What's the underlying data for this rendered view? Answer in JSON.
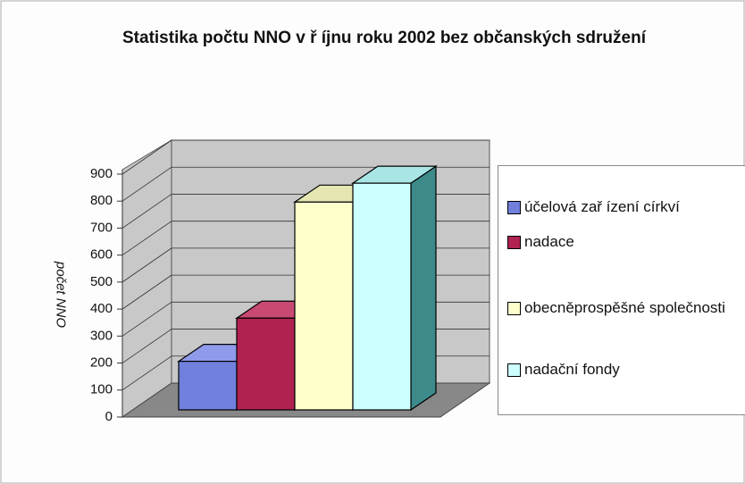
{
  "chart_data": {
    "type": "bar3d",
    "title": "Statistika počtu NNO v ř íjnu roku 2002 bez občanských sdružení",
    "y_label": "počet NNO",
    "categories": [
      "účelová zař ízení církví",
      "nadace",
      "obecněprospěšné společnosti",
      "nadační fondy"
    ],
    "values": [
      180,
      340,
      770,
      840
    ],
    "colors": [
      "#7080dc",
      "#b0224f",
      "#ffffcc",
      "#ccffff"
    ],
    "side_colors": [
      "#4a559e",
      "#7a1637",
      "#c9c98f",
      "#3d8a8a"
    ],
    "top_colors": [
      "#8f9bea",
      "#c84a72",
      "#e6e6b3",
      "#a9e5e5"
    ],
    "ylim": [
      0,
      900
    ],
    "yticks": [
      0,
      100,
      200,
      300,
      400,
      500,
      600,
      700,
      800,
      900
    ],
    "grid": true,
    "legend": "right"
  }
}
